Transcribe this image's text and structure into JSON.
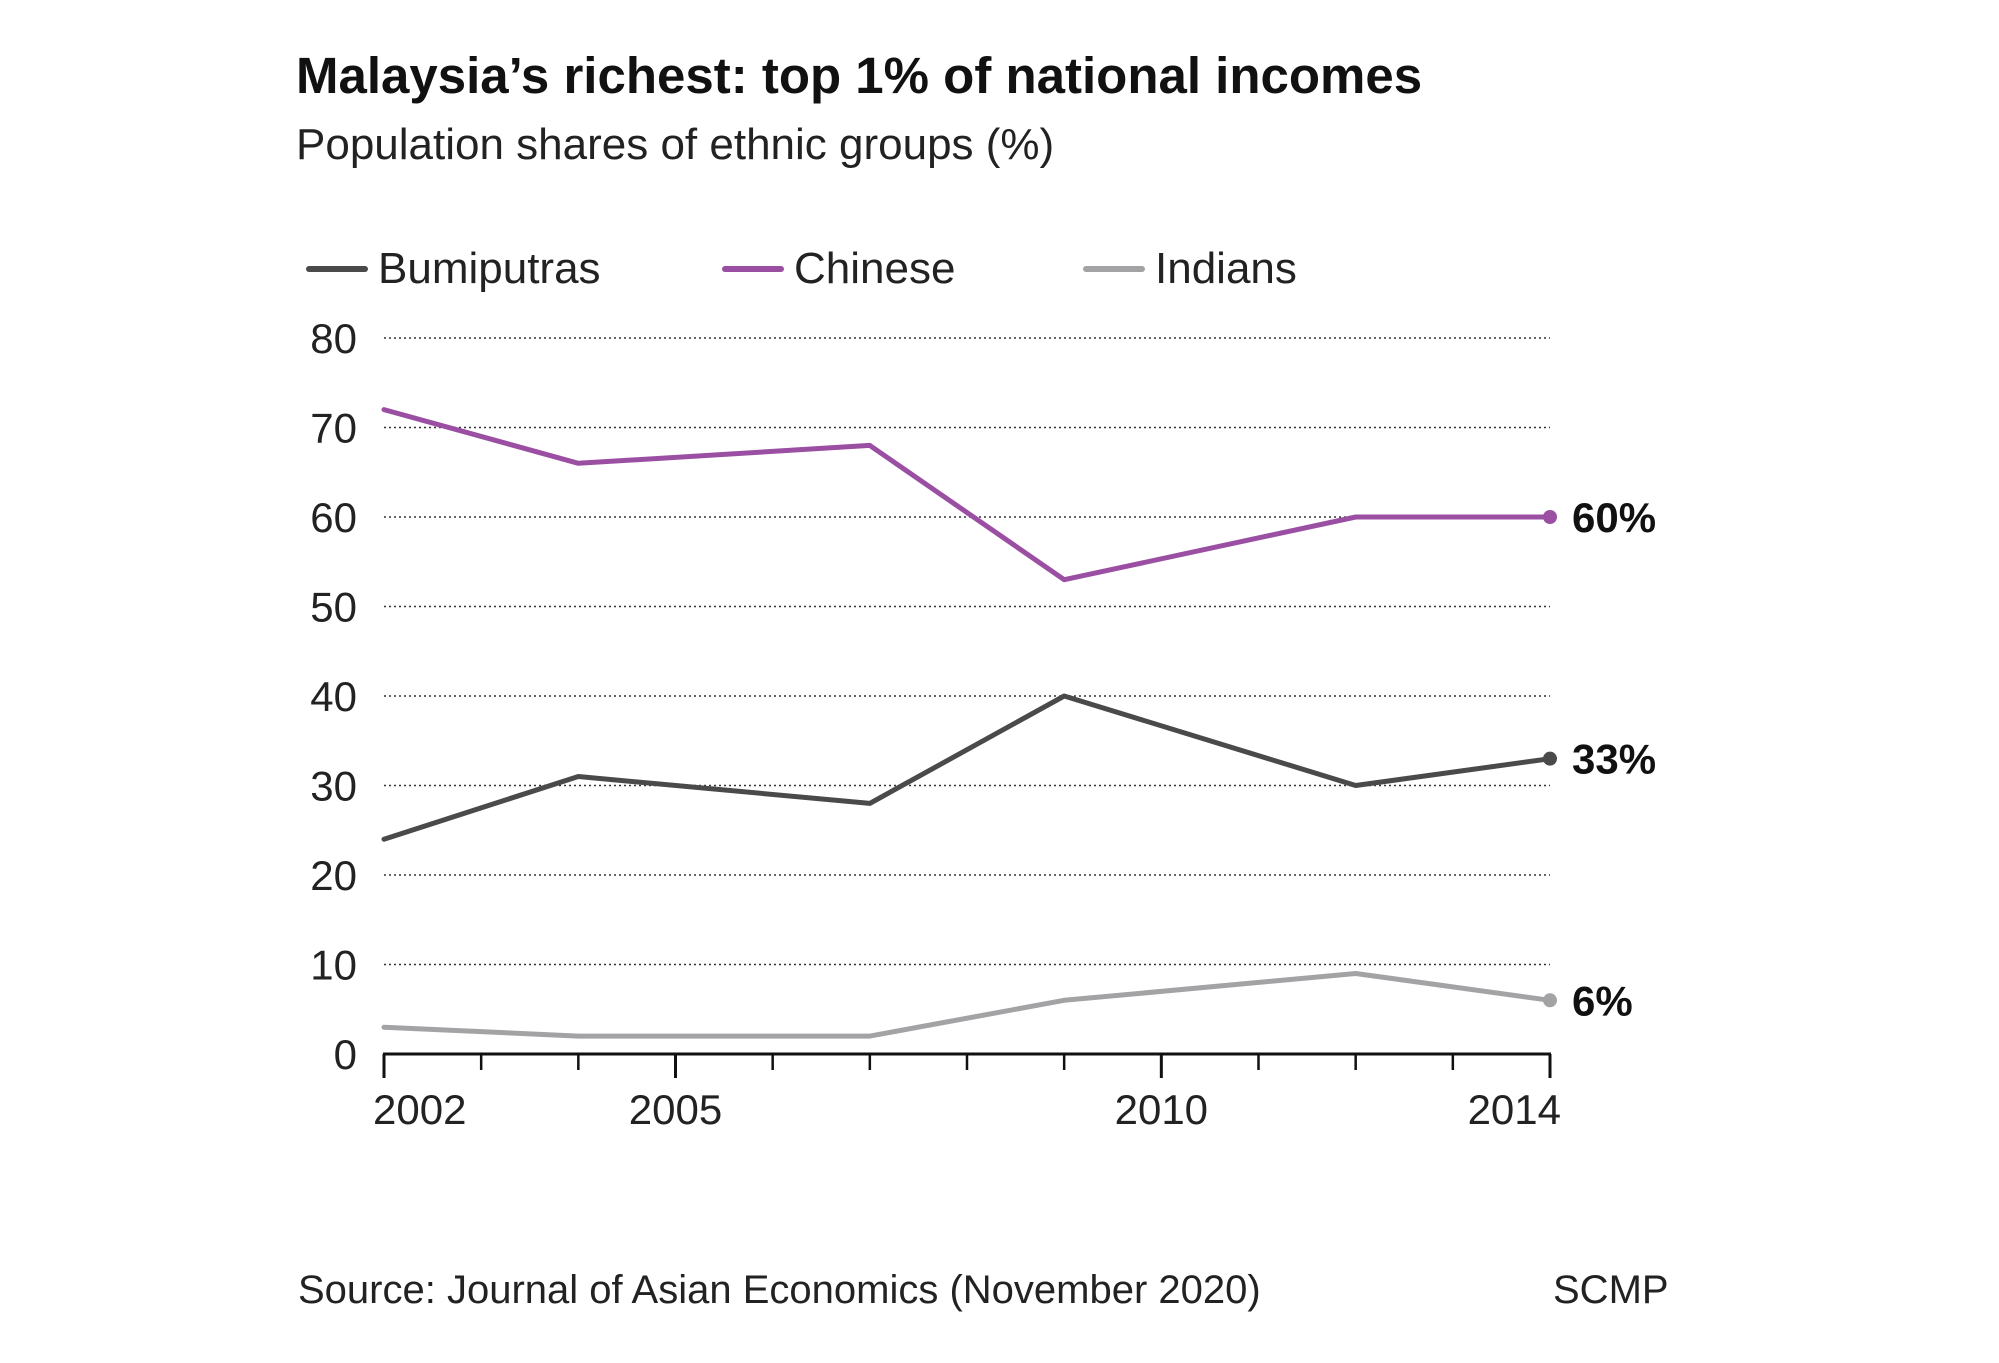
{
  "header": {
    "title": "Malaysia’s richest: top 1% of national incomes",
    "subtitle": "Population shares of ethnic groups (%)"
  },
  "footer": {
    "source": "Source: Journal of Asian Economics (November 2020)",
    "credit": "SCMP"
  },
  "chart_data": {
    "type": "line",
    "title": "Malaysia’s richest: top 1% of national incomes",
    "subtitle": "Population shares of ethnic groups (%)",
    "xlabel": "",
    "ylabel": "",
    "xlim": [
      2002,
      2014
    ],
    "ylim": [
      0,
      80
    ],
    "y_ticks": [
      0,
      10,
      20,
      30,
      40,
      50,
      60,
      70,
      80
    ],
    "x_major_ticks": [
      2002,
      2005,
      2010,
      2014
    ],
    "x_minor_ticks": [
      2003,
      2004,
      2006,
      2007,
      2008,
      2009,
      2011,
      2012,
      2013
    ],
    "grid": "horizontal dotted",
    "legend_position": "top",
    "series": [
      {
        "name": "Bumiputras",
        "color": "#4a4a4a",
        "x": [
          2002,
          2004,
          2007,
          2009,
          2012,
          2014
        ],
        "values": [
          24,
          31,
          28,
          40,
          30,
          33
        ],
        "end_label": "33%"
      },
      {
        "name": "Chinese",
        "color": "#9b4fa3",
        "x": [
          2002,
          2004,
          2007,
          2009,
          2012,
          2014
        ],
        "values": [
          72,
          66,
          68,
          53,
          60,
          60
        ],
        "end_label": "60%"
      },
      {
        "name": "Indians",
        "color": "#a3a3a6",
        "x": [
          2002,
          2004,
          2007,
          2009,
          2012,
          2014
        ],
        "values": [
          3,
          2,
          2,
          6,
          9,
          6
        ],
        "end_label": "6%"
      }
    ]
  }
}
